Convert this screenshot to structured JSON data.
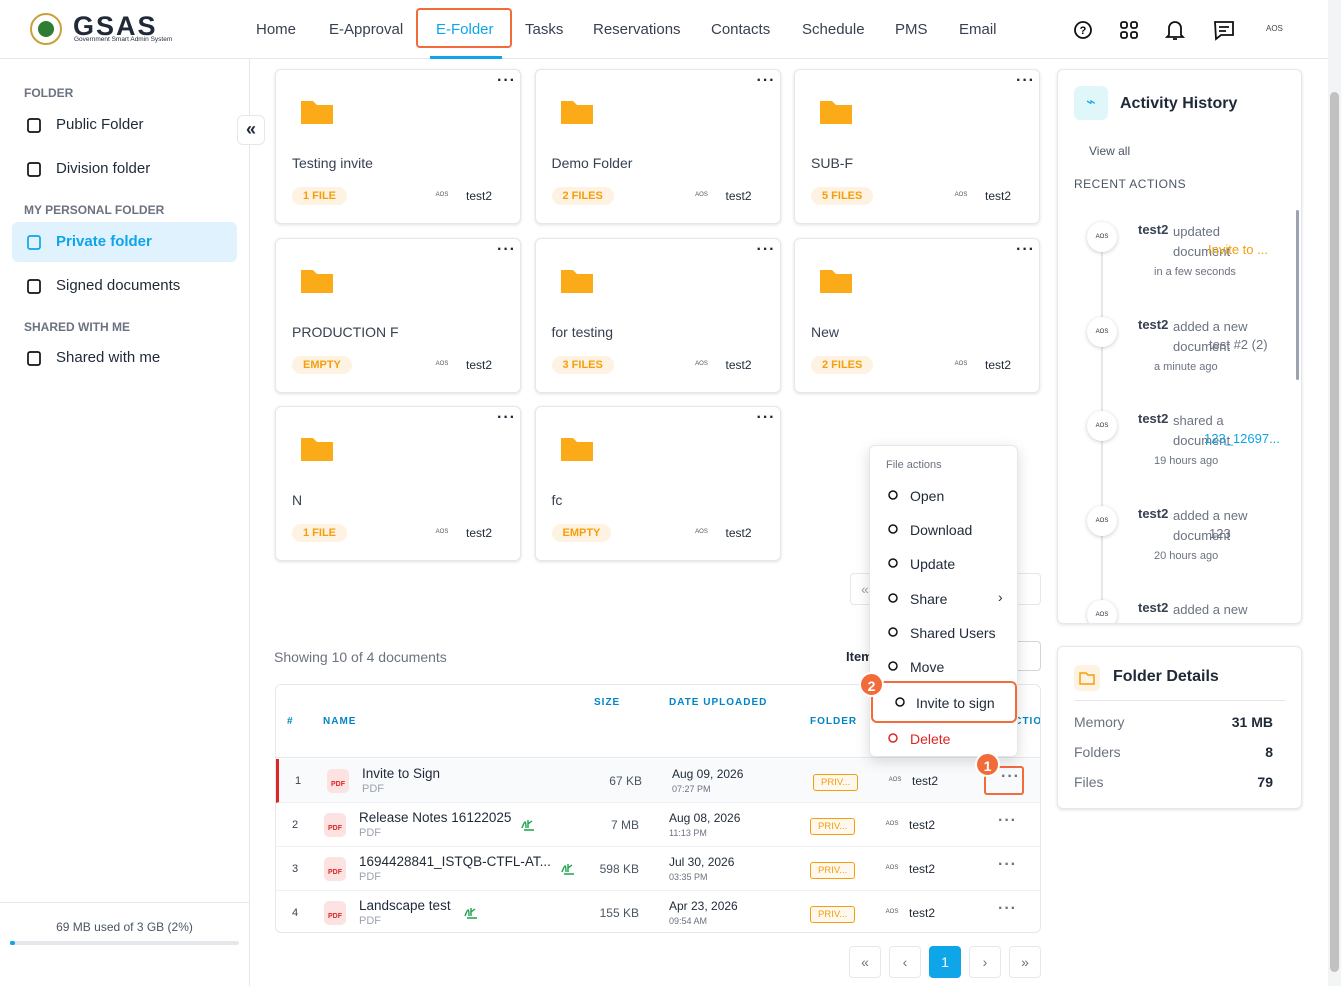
{
  "header": {
    "logo_title": "GSAS",
    "logo_subtitle": "Government Smart Admin System",
    "nav": [
      "Home",
      "E-Approval",
      "E-Folder",
      "Tasks",
      "Reservations",
      "Contacts",
      "Schedule",
      "PMS",
      "Email"
    ],
    "active_nav": 2,
    "avatar": "AOS"
  },
  "sidebar": {
    "sections": [
      {
        "heading": "FOLDER",
        "items": [
          "Public Folder",
          "Division folder"
        ]
      },
      {
        "heading": "MY PERSONAL FOLDER",
        "items": [
          "Private folder",
          "Signed documents"
        ]
      },
      {
        "heading": "SHARED WITH ME",
        "items": [
          "Shared with me"
        ]
      }
    ],
    "storage_text": "69 MB used of 3 GB (2%)",
    "storage_percent": 2
  },
  "folders": [
    {
      "name": "Testing invite",
      "count": "1 FILE",
      "owner": "test2"
    },
    {
      "name": "Demo Folder",
      "count": "2 FILES",
      "owner": "test2"
    },
    {
      "name": "SUB-F",
      "count": "5 FILES",
      "owner": "test2"
    },
    {
      "name": "PRODUCTION F",
      "count": "EMPTY",
      "owner": "test2"
    },
    {
      "name": "for testing",
      "count": "3 FILES",
      "owner": "test2"
    },
    {
      "name": "New",
      "count": "2 FILES",
      "owner": "test2"
    },
    {
      "name": "N",
      "count": "1 FILE",
      "owner": "test2"
    },
    {
      "name": "fc",
      "count": "EMPTY",
      "owner": "test2"
    }
  ],
  "documents": {
    "showing": "Showing 10 of 4 documents",
    "items_per_page": "Items per page",
    "columns": [
      "#",
      "NAME",
      "SIZE",
      "DATE UPLOADED",
      "FOLDER",
      "ACTIONS"
    ],
    "rows": [
      {
        "index": 1,
        "name": "Invite to Sign",
        "type": "PDF",
        "size": "67 KB",
        "date": "Aug 09, 2026",
        "time": "07:27 PM",
        "folder": "PRIV...",
        "owner": "test2"
      },
      {
        "index": 2,
        "name": "Release Notes 16122025",
        "type": "PDF",
        "size": "7 MB",
        "date": "Aug 08, 2026",
        "time": "11:13 PM",
        "folder": "PRIV...",
        "owner": "test2"
      },
      {
        "index": 3,
        "name": "1694428841_ISTQB-CTFL-AT...",
        "type": "PDF",
        "size": "598 KB",
        "date": "Jul 30, 2026",
        "time": "03:35 PM",
        "folder": "PRIV...",
        "owner": "test2"
      },
      {
        "index": 4,
        "name": "Landscape test",
        "type": "PDF",
        "size": "155 KB",
        "date": "Apr 23, 2026",
        "time": "09:54 AM",
        "folder": "PRIV...",
        "owner": "test2"
      }
    ],
    "page": "1"
  },
  "menu": {
    "title": "File actions",
    "items": [
      "Open",
      "Download",
      "Update",
      "Share",
      "Shared Users",
      "Move",
      "Invite to sign",
      "Delete"
    ]
  },
  "callouts": [
    "1",
    "2"
  ],
  "activity": {
    "title": "Activity History",
    "view_all": "View all",
    "recent": "RECENT ACTIONS",
    "items": [
      {
        "user": "test2",
        "action": "updated document",
        "target": "Invite to ...",
        "time": "in a few seconds"
      },
      {
        "user": "test2",
        "action": "added a new document",
        "target": "test #2 (2)",
        "time": "a minute ago"
      },
      {
        "user": "test2",
        "action": "shared a document",
        "target": "123_12697...",
        "time": "19 hours ago"
      },
      {
        "user": "test2",
        "action": "added a new document",
        "target": "123",
        "time": "20 hours ago"
      },
      {
        "user": "test2",
        "action": "added a new",
        "target": "",
        "time": ""
      }
    ]
  },
  "details": {
    "title": "Folder Details",
    "rows": [
      {
        "label": "Memory",
        "value": "31 MB"
      },
      {
        "label": "Folders",
        "value": "8"
      },
      {
        "label": "Files",
        "value": "79"
      }
    ]
  }
}
